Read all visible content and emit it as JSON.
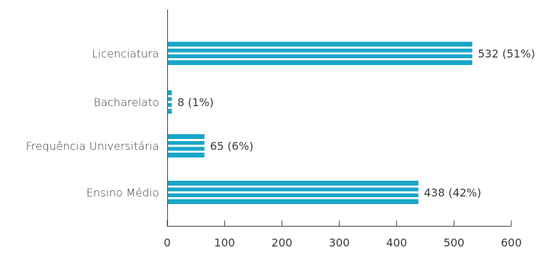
{
  "chart_data": {
    "type": "bar",
    "orientation": "horizontal",
    "categories": [
      "Licenciatura",
      "Bacharelato",
      "Frequência Universitária",
      "Ensino Médio"
    ],
    "values": [
      532,
      8,
      65,
      438
    ],
    "data_labels": [
      "532 (51%)",
      "8 (1%)",
      "65 (6%)",
      "438 (42%)"
    ],
    "title": "",
    "xlabel": "",
    "ylabel": "",
    "xlim": [
      0,
      600
    ],
    "xticks": [
      "0",
      "100",
      "200",
      "300",
      "400",
      "500",
      "600"
    ],
    "grid": false,
    "colors": {
      "bar": "#1aa6c8",
      "stripe": "#ffffff",
      "text": "#3a3a3a",
      "axis": "#3a3a3a"
    }
  }
}
